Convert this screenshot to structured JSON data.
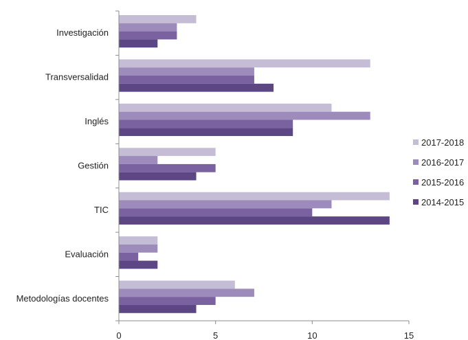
{
  "chart_data": {
    "type": "bar",
    "orientation": "horizontal",
    "categories": [
      "Investigación",
      "Transversalidad",
      "Inglés",
      "Gestión",
      "TIC",
      "Evaluación",
      "Metodologías docentes"
    ],
    "series": [
      {
        "name": "2017-2018",
        "color": "#c5bcd6",
        "values": [
          4,
          13,
          11,
          5,
          14,
          2,
          6
        ]
      },
      {
        "name": "2016-2017",
        "color": "#9d8bbb",
        "values": [
          3,
          7,
          13,
          2,
          11,
          2,
          7
        ]
      },
      {
        "name": "2015-2016",
        "color": "#7a62a0",
        "values": [
          3,
          7,
          9,
          5,
          10,
          1,
          5
        ]
      },
      {
        "name": "2014-2015",
        "color": "#5c4683",
        "values": [
          2,
          8,
          9,
          4,
          14,
          2,
          4
        ]
      }
    ],
    "xlim": [
      0,
      15
    ],
    "xticks": [
      "0",
      "5",
      "10",
      "15"
    ],
    "grid": false,
    "legend_position": "right"
  }
}
